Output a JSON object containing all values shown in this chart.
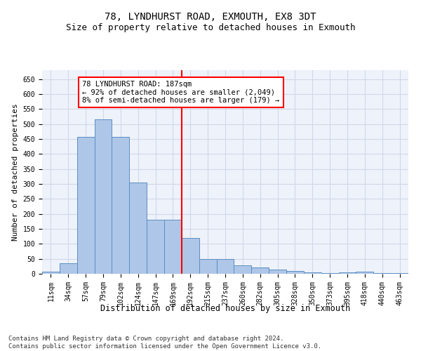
{
  "title": "78, LYNDHURST ROAD, EXMOUTH, EX8 3DT",
  "subtitle": "Size of property relative to detached houses in Exmouth",
  "xlabel": "Distribution of detached houses by size in Exmouth",
  "ylabel": "Number of detached properties",
  "bar_labels": [
    "11sqm",
    "34sqm",
    "57sqm",
    "79sqm",
    "102sqm",
    "124sqm",
    "147sqm",
    "169sqm",
    "192sqm",
    "215sqm",
    "237sqm",
    "260sqm",
    "282sqm",
    "305sqm",
    "328sqm",
    "350sqm",
    "373sqm",
    "395sqm",
    "418sqm",
    "440sqm",
    "463sqm"
  ],
  "bar_values": [
    7,
    35,
    457,
    515,
    457,
    305,
    180,
    180,
    120,
    50,
    50,
    27,
    20,
    15,
    10,
    5,
    3,
    5,
    7,
    3,
    3
  ],
  "bar_color": "#aec6e8",
  "bar_edge_color": "#5a8fc2",
  "vline_color": "red",
  "annotation_text": "78 LYNDHURST ROAD: 187sqm\n← 92% of detached houses are smaller (2,049)\n8% of semi-detached houses are larger (179) →",
  "annotation_box_color": "white",
  "annotation_box_edge_color": "red",
  "ylim": [
    0,
    680
  ],
  "yticks": [
    0,
    50,
    100,
    150,
    200,
    250,
    300,
    350,
    400,
    450,
    500,
    550,
    600,
    650
  ],
  "footnote": "Contains HM Land Registry data © Crown copyright and database right 2024.\nContains public sector information licensed under the Open Government Licence v3.0.",
  "grid_color": "#d0d8e8",
  "bg_color": "#eef2fa",
  "title_fontsize": 10,
  "subtitle_fontsize": 9,
  "tick_fontsize": 7,
  "ylabel_fontsize": 8,
  "xlabel_fontsize": 8.5,
  "footnote_fontsize": 6.5
}
